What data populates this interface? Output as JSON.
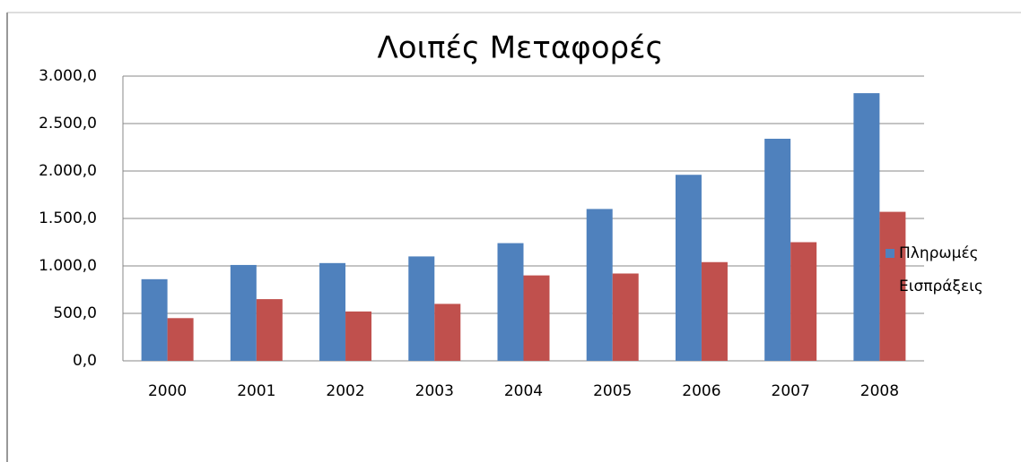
{
  "chart_data": {
    "type": "bar",
    "title": "Λοιπές Μεταφορές",
    "categories": [
      "2000",
      "2001",
      "2002",
      "2003",
      "2004",
      "2005",
      "2006",
      "2007",
      "2008"
    ],
    "series": [
      {
        "name": "Πληρωμές",
        "color": "#4f81bd",
        "values": [
          860,
          1010,
          1030,
          1100,
          1240,
          1600,
          1960,
          2340,
          2820
        ]
      },
      {
        "name": "Εισπράξεις",
        "color": "#c0504d",
        "values": [
          450,
          650,
          520,
          600,
          900,
          920,
          1040,
          1250,
          1570
        ]
      }
    ],
    "ylim": [
      0,
      3000
    ],
    "yticks": [
      {
        "value": 0,
        "label": "0,0"
      },
      {
        "value": 500,
        "label": "500,0"
      },
      {
        "value": 1000,
        "label": "1.000,0"
      },
      {
        "value": 1500,
        "label": "1.500,0"
      },
      {
        "value": 2000,
        "label": "2.000,0"
      },
      {
        "value": 2500,
        "label": "2.500,0"
      },
      {
        "value": 3000,
        "label": "3.000,0"
      }
    ],
    "grid": true,
    "legend": "right"
  }
}
